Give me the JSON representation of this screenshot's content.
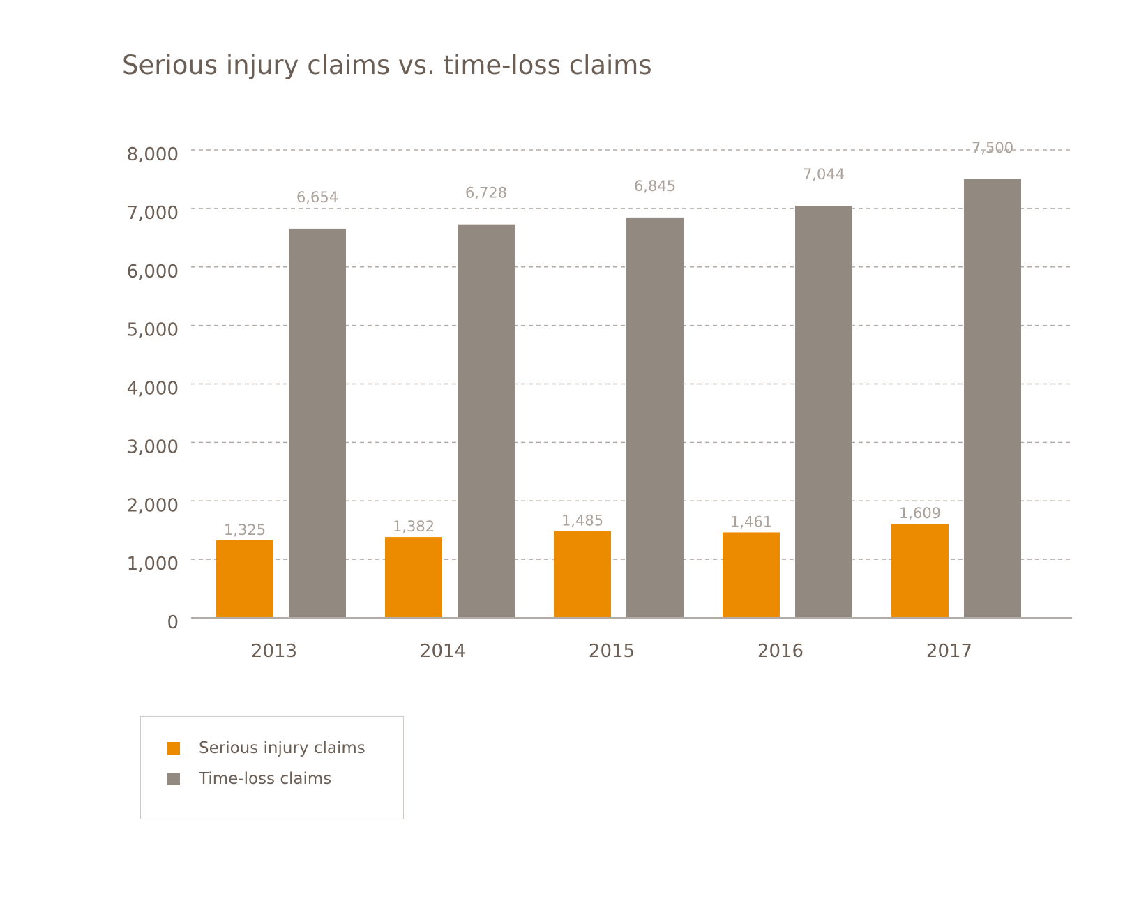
{
  "chart_data": {
    "type": "bar",
    "title": "Serious injury claims vs. time-loss claims",
    "categories": [
      "2013",
      "2014",
      "2015",
      "2016",
      "2017"
    ],
    "series": [
      {
        "name": "Serious injury claims",
        "values": [
          1325,
          1382,
          1485,
          1461,
          1609
        ],
        "labels": [
          "1,325",
          "1,382",
          "1,485",
          "1,461",
          "1,609"
        ],
        "color": "#ec8a00"
      },
      {
        "name": "Time-loss claims",
        "values": [
          6654,
          6728,
          6845,
          7044,
          7500
        ],
        "labels": [
          "6,654",
          "6,728",
          "6,845",
          "7,044",
          "7,500"
        ],
        "color": "#928a81"
      }
    ],
    "ylim": [
      0,
      8000
    ],
    "yticks": [
      0,
      1000,
      2000,
      3000,
      4000,
      5000,
      6000,
      7000,
      8000
    ],
    "ytick_labels": [
      "0",
      "1,000",
      "2,000",
      "3,000",
      "4,000",
      "5,000",
      "6,000",
      "7,000",
      "8,000"
    ],
    "grid": "horizontal dashed",
    "legend": "bottom-left",
    "xlabel": "",
    "ylabel": ""
  }
}
